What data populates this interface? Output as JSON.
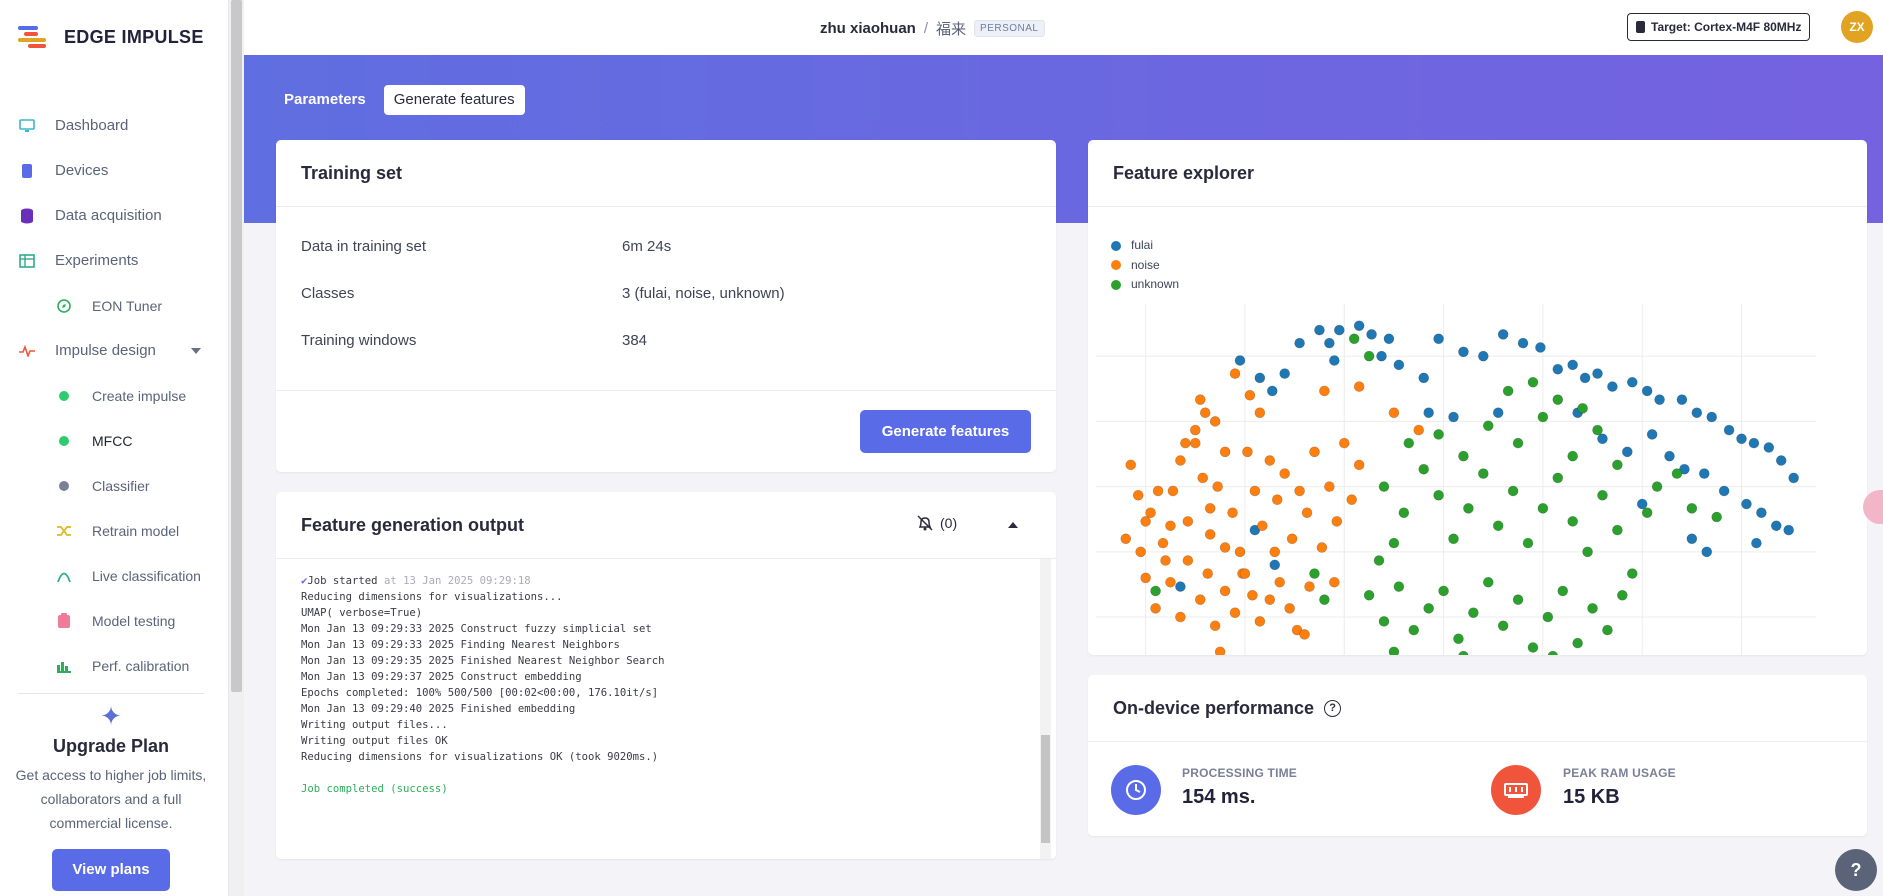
{
  "brand": {
    "name": "EDGE IMPULSE"
  },
  "sidebar": {
    "items": [
      {
        "label": "Dashboard",
        "icon": "monitor-icon"
      },
      {
        "label": "Devices",
        "icon": "chip-icon"
      },
      {
        "label": "Data acquisition",
        "icon": "database-icon"
      },
      {
        "label": "Experiments",
        "icon": "table-icon"
      },
      {
        "label": "EON Tuner",
        "icon": "compass-icon"
      },
      {
        "label": "Impulse design",
        "icon": "pulse-icon"
      },
      {
        "label": "Create impulse",
        "icon": "green-dot-icon"
      },
      {
        "label": "MFCC",
        "icon": "green-dot-icon"
      },
      {
        "label": "Classifier",
        "icon": "grey-dot-icon"
      },
      {
        "label": "Retrain model",
        "icon": "shuffle-icon"
      },
      {
        "label": "Live classification",
        "icon": "signal-icon"
      },
      {
        "label": "Model testing",
        "icon": "clipboard-icon"
      },
      {
        "label": "Perf. calibration",
        "icon": "bar-chart-icon"
      }
    ],
    "upgrade": {
      "title": "Upgrade Plan",
      "text": "Get access to higher job limits, collaborators and a full commercial license.",
      "button": "View plans"
    }
  },
  "topbar": {
    "user": "zhu xiaohuan",
    "separator": "/",
    "project": "福来",
    "badge": "PERSONAL",
    "target": "Target: Cortex-M4F 80MHz",
    "avatar": "ZX"
  },
  "tabs": [
    {
      "label": "Parameters"
    },
    {
      "label": "Generate features"
    }
  ],
  "training_set": {
    "title": "Training set",
    "rows": [
      {
        "key": "Data in training set",
        "value": "6m 24s"
      },
      {
        "key": "Classes",
        "value": "3 (fulai, noise, unknown)"
      },
      {
        "key": "Training windows",
        "value": "384"
      }
    ],
    "button": "Generate features"
  },
  "output": {
    "title": "Feature generation output",
    "notif_count": "(0)",
    "job_started": "Job started",
    "job_started_time": "at 13 Jan 2025 09:29:18",
    "lines": [
      "Reducing dimensions for visualizations...",
      "UMAP( verbose=True)",
      "Mon Jan 13 09:29:33 2025 Construct fuzzy simplicial set",
      "Mon Jan 13 09:29:33 2025 Finding Nearest Neighbors",
      "Mon Jan 13 09:29:35 2025 Finished Nearest Neighbor Search",
      "Mon Jan 13 09:29:37 2025 Construct embedding",
      "Epochs completed: 100% 500/500 [00:02<00:00, 176.10it/s]",
      "Mon Jan 13 09:29:40 2025 Finished embedding",
      "Writing output files...",
      "Writing output files OK",
      "Reducing dimensions for visualizations OK (took 9020ms.)"
    ],
    "job_completed": "Job completed (success)"
  },
  "explorer": {
    "title": "Feature explorer"
  },
  "chart_data": {
    "type": "scatter",
    "title": "",
    "xlabel": "",
    "ylabel": "",
    "grid": true,
    "legend_position": "top-left",
    "series": [
      {
        "name": "fulai",
        "color": "#1f77b4",
        "points": [
          [
            2.9,
            0.79
          ],
          [
            3.3,
            0.75
          ],
          [
            3.55,
            0.72
          ],
          [
            3.8,
            0.76
          ],
          [
            4.1,
            0.83
          ],
          [
            4.5,
            0.86
          ],
          [
            4.7,
            0.83
          ],
          [
            4.8,
            0.79
          ],
          [
            4.9,
            0.86
          ],
          [
            5.3,
            0.87
          ],
          [
            5.55,
            0.85
          ],
          [
            5.75,
            0.8
          ],
          [
            5.9,
            0.84
          ],
          [
            6.1,
            0.78
          ],
          [
            6.6,
            0.75
          ],
          [
            6.9,
            0.84
          ],
          [
            7.4,
            0.81
          ],
          [
            7.8,
            0.8
          ],
          [
            8.2,
            0.85
          ],
          [
            8.6,
            0.83
          ],
          [
            8.95,
            0.82
          ],
          [
            9.3,
            0.77
          ],
          [
            9.6,
            0.78
          ],
          [
            9.85,
            0.75
          ],
          [
            10.1,
            0.76
          ],
          [
            10.4,
            0.73
          ],
          [
            10.8,
            0.74
          ],
          [
            11.1,
            0.72
          ],
          [
            11.35,
            0.7
          ],
          [
            11.8,
            0.7
          ],
          [
            12.1,
            0.67
          ],
          [
            12.4,
            0.66
          ],
          [
            12.75,
            0.63
          ],
          [
            13.0,
            0.61
          ],
          [
            13.25,
            0.6
          ],
          [
            13.55,
            0.59
          ],
          [
            13.8,
            0.56
          ],
          [
            14.05,
            0.52
          ],
          [
            9.7,
            0.67
          ],
          [
            10.2,
            0.61
          ],
          [
            10.7,
            0.58
          ],
          [
            11.2,
            0.62
          ],
          [
            11.55,
            0.57
          ],
          [
            11.85,
            0.54
          ],
          [
            12.25,
            0.53
          ],
          [
            12.65,
            0.49
          ],
          [
            13.1,
            0.46
          ],
          [
            13.4,
            0.44
          ],
          [
            13.7,
            0.41
          ],
          [
            13.95,
            0.4
          ],
          [
            11.0,
            0.46
          ],
          [
            12.0,
            0.38
          ],
          [
            12.3,
            0.35
          ],
          [
            13.3,
            0.37
          ],
          [
            8.1,
            0.67
          ],
          [
            7.2,
            0.66
          ],
          [
            6.7,
            0.67
          ],
          [
            3.2,
            0.4
          ],
          [
            3.6,
            0.32
          ],
          [
            1.7,
            0.27
          ],
          [
            3.5,
            0.06
          ],
          [
            3.8,
            0.05
          ],
          [
            3.9,
            0.03
          ],
          [
            3.7,
            0.02
          ],
          [
            3.4,
            0.02
          ]
        ]
      },
      {
        "name": "noise",
        "color": "#ff7f0e",
        "points": [
          [
            0.6,
            0.38
          ],
          [
            0.9,
            0.35
          ],
          [
            1.1,
            0.44
          ],
          [
            1.25,
            0.49
          ],
          [
            1.4,
            0.33
          ],
          [
            1.55,
            0.49
          ],
          [
            1.7,
            0.56
          ],
          [
            1.85,
            0.42
          ],
          [
            2.0,
            0.6
          ],
          [
            2.15,
            0.52
          ],
          [
            2.3,
            0.39
          ],
          [
            2.45,
            0.5
          ],
          [
            2.6,
            0.58
          ],
          [
            2.75,
            0.44
          ],
          [
            2.9,
            0.35
          ],
          [
            3.05,
            0.58
          ],
          [
            3.2,
            0.49
          ],
          [
            3.35,
            0.41
          ],
          [
            3.5,
            0.56
          ],
          [
            3.65,
            0.47
          ],
          [
            3.8,
            0.53
          ],
          [
            3.95,
            0.38
          ],
          [
            4.1,
            0.49
          ],
          [
            4.25,
            0.44
          ],
          [
            4.4,
            0.58
          ],
          [
            4.55,
            0.36
          ],
          [
            4.7,
            0.5
          ],
          [
            4.85,
            0.42
          ],
          [
            5.0,
            0.6
          ],
          [
            5.15,
            0.47
          ],
          [
            5.3,
            0.55
          ],
          [
            0.7,
            0.55
          ],
          [
            0.85,
            0.48
          ],
          [
            1.0,
            0.29
          ],
          [
            1.2,
            0.22
          ],
          [
            1.35,
            0.37
          ],
          [
            1.5,
            0.28
          ],
          [
            1.7,
            0.2
          ],
          [
            1.85,
            0.33
          ],
          [
            2.1,
            0.24
          ],
          [
            2.25,
            0.3
          ],
          [
            2.4,
            0.18
          ],
          [
            2.6,
            0.26
          ],
          [
            2.8,
            0.21
          ],
          [
            2.95,
            0.3
          ],
          [
            3.15,
            0.25
          ],
          [
            3.3,
            0.19
          ],
          [
            3.5,
            0.24
          ],
          [
            3.7,
            0.28
          ],
          [
            3.9,
            0.22
          ],
          [
            4.05,
            0.17
          ],
          [
            4.3,
            0.27
          ],
          [
            2.1,
            0.7
          ],
          [
            2.4,
            0.65
          ],
          [
            2.8,
            0.76
          ],
          [
            3.1,
            0.71
          ],
          [
            3.3,
            0.67
          ],
          [
            2.0,
            0.63
          ],
          [
            2.2,
            0.67
          ],
          [
            1.8,
            0.6
          ],
          [
            4.6,
            0.72
          ],
          [
            5.3,
            0.73
          ],
          [
            6.0,
            0.67
          ],
          [
            6.5,
            0.63
          ],
          [
            3.2,
            0.1
          ],
          [
            4.2,
            0.16
          ],
          [
            2.5,
            0.12
          ],
          [
            1.0,
            0.42
          ],
          [
            1.5,
            0.41
          ],
          [
            2.3,
            0.45
          ],
          [
            2.6,
            0.36
          ],
          [
            3.0,
            0.3
          ],
          [
            3.6,
            0.35
          ],
          [
            4.8,
            0.28
          ]
        ]
      },
      {
        "name": "unknown",
        "color": "#2ca02c",
        "points": [
          [
            5.8,
            0.5
          ],
          [
            6.2,
            0.44
          ],
          [
            6.6,
            0.54
          ],
          [
            6.9,
            0.48
          ],
          [
            7.2,
            0.38
          ],
          [
            7.5,
            0.45
          ],
          [
            7.8,
            0.53
          ],
          [
            8.1,
            0.41
          ],
          [
            8.4,
            0.49
          ],
          [
            8.7,
            0.37
          ],
          [
            9.0,
            0.45
          ],
          [
            9.3,
            0.52
          ],
          [
            9.6,
            0.42
          ],
          [
            9.9,
            0.35
          ],
          [
            10.2,
            0.48
          ],
          [
            10.5,
            0.4
          ],
          [
            10.8,
            0.3
          ],
          [
            11.1,
            0.44
          ],
          [
            5.5,
            0.25
          ],
          [
            5.8,
            0.19
          ],
          [
            6.1,
            0.27
          ],
          [
            6.4,
            0.17
          ],
          [
            6.7,
            0.22
          ],
          [
            7.0,
            0.26
          ],
          [
            7.3,
            0.15
          ],
          [
            7.6,
            0.21
          ],
          [
            7.9,
            0.28
          ],
          [
            8.2,
            0.18
          ],
          [
            8.5,
            0.24
          ],
          [
            8.8,
            0.13
          ],
          [
            9.1,
            0.2
          ],
          [
            9.4,
            0.26
          ],
          [
            9.7,
            0.14
          ],
          [
            10.0,
            0.22
          ],
          [
            10.3,
            0.17
          ],
          [
            10.6,
            0.25
          ],
          [
            5.6,
            0.08
          ],
          [
            6.0,
            0.12
          ],
          [
            6.4,
            0.05
          ],
          [
            6.8,
            0.09
          ],
          [
            7.1,
            0.04
          ],
          [
            7.4,
            0.11
          ],
          [
            7.7,
            0.06
          ],
          [
            8.0,
            0.1
          ],
          [
            8.3,
            0.04
          ],
          [
            8.6,
            0.09
          ],
          [
            8.9,
            0.06
          ],
          [
            9.2,
            0.11
          ],
          [
            9.5,
            0.07
          ],
          [
            6.3,
            0.6
          ],
          [
            6.9,
            0.62
          ],
          [
            7.4,
            0.57
          ],
          [
            7.9,
            0.64
          ],
          [
            8.5,
            0.6
          ],
          [
            9.0,
            0.66
          ],
          [
            9.6,
            0.57
          ],
          [
            10.1,
            0.63
          ],
          [
            10.5,
            0.55
          ],
          [
            11.3,
            0.5
          ],
          [
            11.7,
            0.53
          ],
          [
            12.0,
            0.45
          ],
          [
            12.5,
            0.43
          ],
          [
            8.3,
            0.72
          ],
          [
            8.8,
            0.74
          ],
          [
            9.3,
            0.7
          ],
          [
            9.8,
            0.68
          ],
          [
            5.7,
            0.33
          ],
          [
            6.0,
            0.37
          ],
          [
            4.4,
            0.3
          ],
          [
            4.6,
            0.24
          ],
          [
            1.2,
            0.26
          ],
          [
            5.2,
            0.84
          ],
          [
            5.5,
            0.8
          ]
        ]
      }
    ]
  },
  "performance": {
    "title": "On-device performance",
    "processing_label": "PROCESSING TIME",
    "processing_value": "154 ms.",
    "ram_label": "PEAK RAM USAGE",
    "ram_value": "15 KB"
  },
  "colors": {
    "accent": "#5a6be8",
    "banner_start": "#5f6ee0",
    "banner_end": "#7562e0",
    "processing_icon_bg": "#5a6be8",
    "ram_icon_bg": "#f0553c"
  }
}
